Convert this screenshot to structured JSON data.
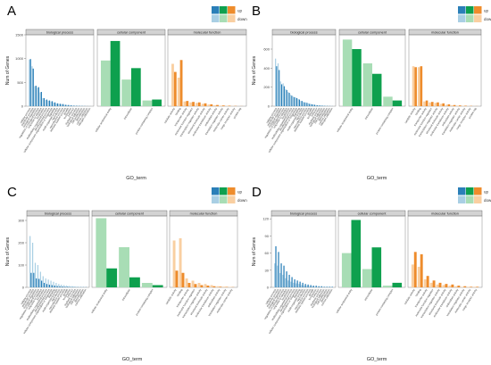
{
  "figure": {
    "legend_labels": [
      "up",
      "down"
    ],
    "strip_labels": [
      "biological process",
      "cellular component",
      "molecular function"
    ],
    "colors": {
      "bp_up": "#2A7FB8",
      "bp_down": "#A9CFE4",
      "cc_up": "#0EA04E",
      "cc_down": "#A8DDB5",
      "mf_up": "#EE8C2C",
      "mf_down": "#F9CFA1",
      "strip_bg": "#D3D3D3",
      "strip_border": "#555555",
      "panel_border": "#888888"
    }
  },
  "chart_data": [
    {
      "panel_label": "A",
      "type": "bar",
      "xlabel": "GO_term",
      "ylabel": "Num of Genes",
      "ylim": [
        0,
        1500
      ],
      "yticks": [
        0,
        500,
        1000,
        1500
      ],
      "legend": "top-right",
      "facets": [
        {
          "name": "biological process",
          "categories": [
            "cellular process",
            "metabolic process",
            "biological regulation",
            "regulation of biological process",
            "response to stimulus",
            "localization",
            "multicellular organismal process",
            "developmental process",
            "cellular component organization or biogenesis",
            "signaling",
            "multi-organism process",
            "reproduction",
            "reproductive process",
            "immune system process",
            "growth",
            "locomotion",
            "behavior",
            "rhythmic process",
            "biological adhesion",
            "cell proliferation",
            "detoxification",
            "carbon utilization",
            "nitrogen utilization"
          ],
          "series": [
            {
              "name": "up",
              "values": [
                990,
                790,
                430,
                400,
                300,
                170,
                140,
                120,
                105,
                80,
                60,
                50,
                45,
                30,
                25,
                18,
                12,
                10,
                8,
                6,
                4,
                2,
                1
              ]
            },
            {
              "name": "down",
              "values": [
                980,
                840,
                420,
                390,
                290,
                170,
                130,
                115,
                100,
                75,
                55,
                48,
                42,
                28,
                22,
                15,
                10,
                8,
                6,
                5,
                3,
                2,
                1
              ]
            }
          ]
        },
        {
          "name": "cellular component",
          "categories": [
            "cellular anatomical entity",
            "intracellular",
            "protein-containing complex"
          ],
          "series": [
            {
              "name": "up",
              "values": [
                1370,
                800,
                140
              ]
            },
            {
              "name": "down",
              "values": [
                960,
                560,
                120
              ]
            }
          ]
        },
        {
          "name": "molecular function",
          "categories": [
            "catalytic activity",
            "binding",
            "transporter activity",
            "molecular function regulator",
            "transcription regulator activity",
            "structural molecule activity",
            "molecular transducer activity",
            "antioxidant activity",
            "translation regulator activity",
            "molecular carrier activity",
            "cargo receptor activity",
            "protein tag"
          ],
          "series": [
            {
              "name": "up",
              "values": [
                720,
                970,
                110,
                90,
                80,
                60,
                40,
                25,
                15,
                10,
                5,
                2
              ]
            },
            {
              "name": "down",
              "values": [
                890,
                600,
                100,
                80,
                70,
                50,
                35,
                20,
                12,
                8,
                4,
                1
              ]
            }
          ]
        }
      ]
    },
    {
      "panel_label": "B",
      "type": "bar",
      "xlabel": "GO_term",
      "ylabel": "Num of Genes",
      "ylim": [
        0,
        750
      ],
      "yticks": [
        0,
        200,
        400,
        600
      ],
      "legend": "top-right",
      "facets": [
        {
          "name": "biological process",
          "categories": [
            "cellular process",
            "metabolic process",
            "biological regulation",
            "regulation of biological process",
            "response to stimulus",
            "localization",
            "multicellular organismal process",
            "developmental process",
            "cellular component organization or biogenesis",
            "signaling",
            "multi-organism process",
            "reproduction",
            "reproductive process",
            "immune system process",
            "growth",
            "locomotion",
            "behavior",
            "rhythmic process",
            "biological adhesion",
            "cell proliferation",
            "detoxification",
            "carbon utilization",
            "nitrogen utilization"
          ],
          "series": [
            {
              "name": "up",
              "values": [
                420,
                380,
                230,
                210,
                170,
                140,
                110,
                95,
                85,
                70,
                55,
                40,
                35,
                25,
                20,
                15,
                10,
                8,
                6,
                4,
                3,
                2,
                1
              ]
            },
            {
              "name": "down",
              "values": [
                500,
                450,
                260,
                240,
                180,
                150,
                120,
                100,
                90,
                75,
                55,
                45,
                40,
                30,
                22,
                18,
                12,
                10,
                8,
                6,
                4,
                2,
                1
              ]
            }
          ]
        },
        {
          "name": "cellular component",
          "categories": [
            "cellular anatomical entity",
            "intracellular",
            "protein-containing complex"
          ],
          "series": [
            {
              "name": "up",
              "values": [
                600,
                340,
                60
              ]
            },
            {
              "name": "down",
              "values": [
                700,
                450,
                100
              ]
            }
          ]
        },
        {
          "name": "molecular function",
          "categories": [
            "catalytic activity",
            "binding",
            "transporter activity",
            "molecular function regulator",
            "transcription regulator activity",
            "structural molecule activity",
            "molecular transducer activity",
            "antioxidant activity",
            "translation regulator activity",
            "molecular carrier activity",
            "cargo receptor activity",
            "protein tag"
          ],
          "series": [
            {
              "name": "up",
              "values": [
                410,
                420,
                60,
                45,
                40,
                30,
                20,
                12,
                8,
                5,
                3,
                1
              ]
            },
            {
              "name": "down",
              "values": [
                420,
                410,
                50,
                40,
                35,
                25,
                15,
                10,
                6,
                4,
                2,
                1
              ]
            }
          ]
        }
      ]
    },
    {
      "panel_label": "C",
      "type": "bar",
      "xlabel": "GO_term",
      "ylabel": "Num of Genes",
      "ylim": [
        0,
        320
      ],
      "yticks": [
        0,
        100,
        200,
        300
      ],
      "legend": "top-right",
      "facets": [
        {
          "name": "biological process",
          "categories": [
            "cellular process",
            "metabolic process",
            "biological regulation",
            "regulation of biological process",
            "response to stimulus",
            "localization",
            "multicellular organismal process",
            "developmental process",
            "cellular component organization or biogenesis",
            "signaling",
            "multi-organism process",
            "reproduction",
            "reproductive process",
            "immune system process",
            "growth",
            "locomotion",
            "behavior",
            "rhythmic process",
            "biological adhesion",
            "cell proliferation",
            "detoxification",
            "carbon utilization"
          ],
          "series": [
            {
              "name": "up",
              "values": [
                65,
                65,
                40,
                38,
                30,
                20,
                15,
                12,
                10,
                8,
                6,
                5,
                4,
                3,
                3,
                2,
                2,
                1,
                1,
                1,
                1,
                1
              ]
            },
            {
              "name": "down",
              "values": [
                230,
                200,
                110,
                100,
                70,
                50,
                40,
                35,
                30,
                25,
                20,
                15,
                12,
                10,
                8,
                6,
                5,
                4,
                3,
                2,
                2,
                1
              ]
            }
          ]
        },
        {
          "name": "cellular component",
          "categories": [
            "cellular anatomical entity",
            "intracellular",
            "protein-containing complex"
          ],
          "series": [
            {
              "name": "up",
              "values": [
                85,
                45,
                10
              ]
            },
            {
              "name": "down",
              "values": [
                310,
                180,
                20
              ]
            }
          ]
        },
        {
          "name": "molecular function",
          "categories": [
            "catalytic activity",
            "binding",
            "transporter activity",
            "molecular function regulator",
            "transcription regulator activity",
            "structural molecule activity",
            "molecular transducer activity",
            "antioxidant activity",
            "translation regulator activity",
            "molecular carrier activity"
          ],
          "series": [
            {
              "name": "up",
              "values": [
                75,
                65,
                20,
                15,
                10,
                8,
                5,
                3,
                2,
                1
              ]
            },
            {
              "name": "down",
              "values": [
                210,
                220,
                40,
                30,
                20,
                15,
                10,
                5,
                3,
                2
              ]
            }
          ]
        }
      ]
    },
    {
      "panel_label": "D",
      "type": "bar",
      "xlabel": "GO_term",
      "ylabel": "Num of Genes",
      "ylim": [
        0,
        125
      ],
      "yticks": [
        0,
        30,
        60,
        90,
        120
      ],
      "legend": "top-right",
      "facets": [
        {
          "name": "biological process",
          "categories": [
            "cellular process",
            "metabolic process",
            "biological regulation",
            "regulation of biological process",
            "response to stimulus",
            "localization",
            "multicellular organismal process",
            "developmental process",
            "cellular component organization or biogenesis",
            "signaling",
            "multi-organism process",
            "reproduction",
            "reproductive process",
            "immune system process",
            "growth",
            "locomotion",
            "behavior",
            "rhythmic process",
            "biological adhesion",
            "cell proliferation",
            "detoxification",
            "carbon utilization"
          ],
          "series": [
            {
              "name": "up",
              "values": [
                72,
                62,
                42,
                38,
                28,
                22,
                18,
                14,
                12,
                10,
                8,
                6,
                5,
                4,
                3,
                3,
                2,
                2,
                1,
                1,
                1,
                1
              ]
            },
            {
              "name": "down",
              "values": [
                42,
                38,
                25,
                22,
                16,
                12,
                10,
                8,
                7,
                6,
                4,
                3,
                3,
                2,
                2,
                1,
                1,
                1,
                1,
                1,
                1,
                1
              ]
            }
          ]
        },
        {
          "name": "cellular component",
          "categories": [
            "cellular anatomical entity",
            "intracellular",
            "protein-containing complex"
          ],
          "series": [
            {
              "name": "up",
              "values": [
                118,
                70,
                8
              ]
            },
            {
              "name": "down",
              "values": [
                60,
                32,
                3
              ]
            }
          ]
        },
        {
          "name": "molecular function",
          "categories": [
            "catalytic activity",
            "binding",
            "transporter activity",
            "molecular function regulator",
            "transcription regulator activity",
            "structural molecule activity",
            "molecular transducer activity",
            "antioxidant activity",
            "translation regulator activity",
            "molecular carrier activity",
            "cargo receptor activity"
          ],
          "series": [
            {
              "name": "up",
              "values": [
                62,
                58,
                20,
                12,
                8,
                6,
                5,
                3,
                2,
                1,
                1
              ]
            },
            {
              "name": "down",
              "values": [
                40,
                36,
                14,
                8,
                5,
                4,
                3,
                2,
                1,
                1,
                1
              ]
            }
          ]
        }
      ]
    }
  ]
}
